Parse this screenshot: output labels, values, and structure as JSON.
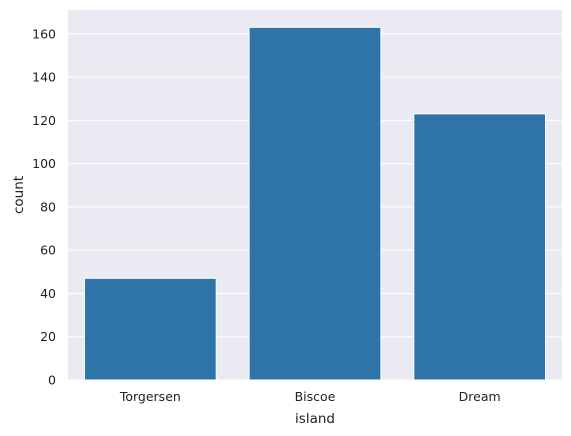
{
  "chart_data": {
    "type": "bar",
    "categories": [
      "Torgersen",
      "Biscoe",
      "Dream"
    ],
    "values": [
      47,
      163,
      123
    ],
    "xlabel": "island",
    "ylabel": "count",
    "ylim": [
      0,
      171
    ],
    "yticks": [
      0,
      20,
      40,
      60,
      80,
      100,
      120,
      140,
      160
    ],
    "grid": true,
    "bar_color": "#2e74a6",
    "background_color": "#eaeaf2",
    "grid_color": "#ffffff"
  }
}
